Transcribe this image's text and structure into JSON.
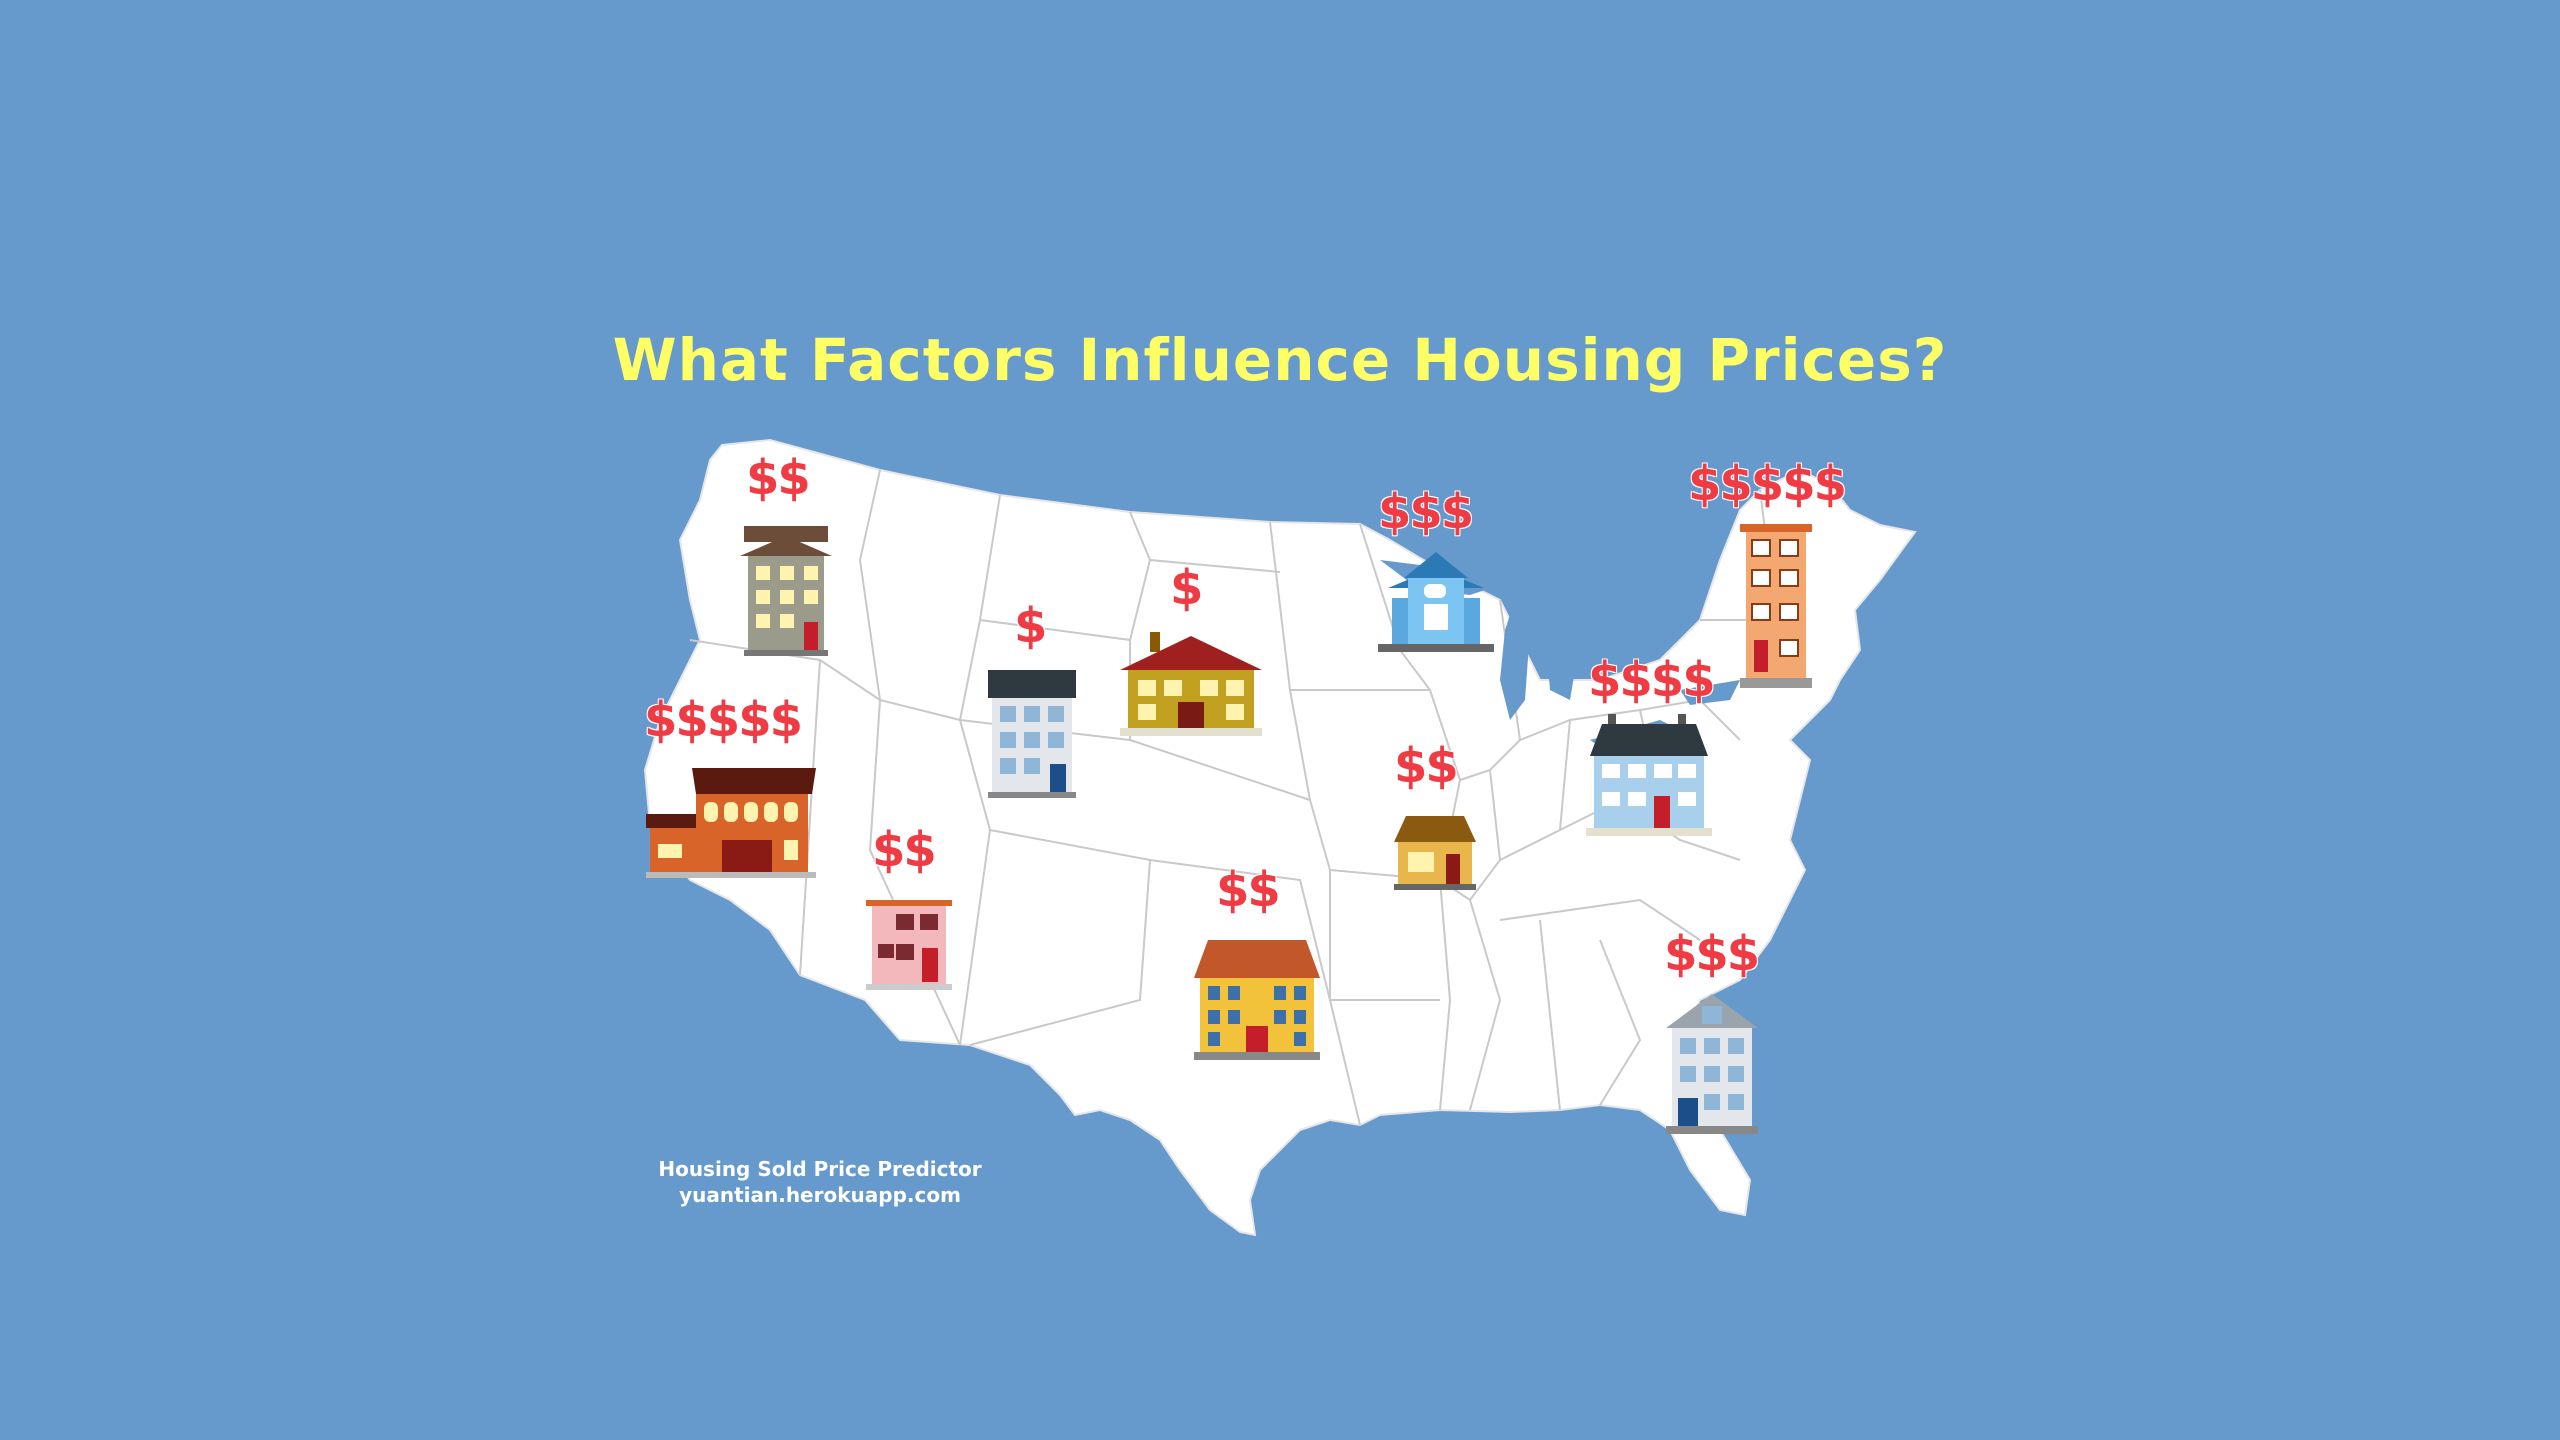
{
  "title": "What Factors Influence Housing Prices?",
  "colors": {
    "background": "#6699cc",
    "title": "#ffff66",
    "price": "#ef3b44",
    "map_fill": "#ffffff",
    "state_borders": "#c9c9c9"
  },
  "prices": {
    "washington": "$$",
    "california": "$$$$$",
    "arizona": "$$",
    "wyoming": "$",
    "south_dakota": "$",
    "texas": "$$",
    "wisconsin": "$$$",
    "illinois": "$$",
    "ohio": "$$$$",
    "new_york": "$$$$$",
    "georgia": "$$$"
  },
  "credit": {
    "line1": "Housing Sold Price Predictor",
    "line2": "yuantian.herokuapp.com"
  }
}
